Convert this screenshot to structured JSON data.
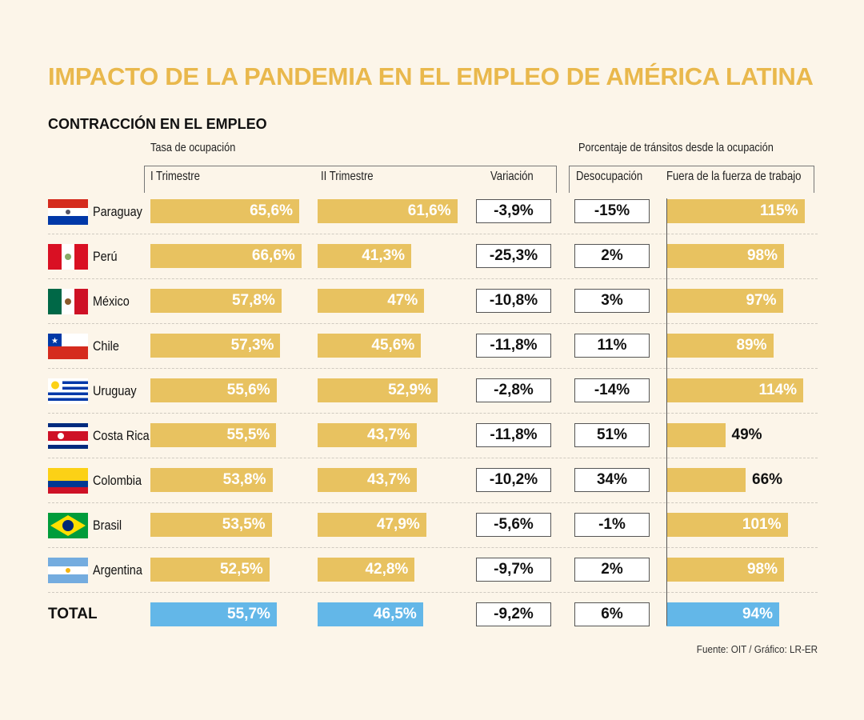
{
  "title": "IMPACTO DE LA PANDEMIA EN EL EMPLEO DE AMÉRICA LATINA",
  "subtitle": "CONTRACCIÓN EN EL EMPLEO",
  "source": "Fuente: OIT / Gráfico: LR-ER",
  "colors": {
    "title": "#e9b84c",
    "bar": "#e8c260",
    "total_bar": "#63b7e8",
    "background": "#fcf5e9"
  },
  "chart_data": {
    "type": "table",
    "groups": [
      "Tasa de ocupación",
      "Porcentaje de tránsitos desde la ocupación"
    ],
    "columns": [
      "I Trimestre",
      "II Trimestre",
      "Variación",
      "Desocupación",
      "Fuera de la fuerza de trabajo"
    ],
    "rows": [
      {
        "country": "Paraguay",
        "flag": "paraguay-flag",
        "t1": 65.6,
        "t1_label": "65,6%",
        "t2": 61.6,
        "t2_label": "61,6%",
        "var": "-3,9%",
        "desoc": "-15%",
        "fuera": 115,
        "fuera_label": "115%"
      },
      {
        "country": "Perú",
        "flag": "peru-flag",
        "t1": 66.6,
        "t1_label": "66,6%",
        "t2": 41.3,
        "t2_label": "41,3%",
        "var": "-25,3%",
        "desoc": "2%",
        "fuera": 98,
        "fuera_label": "98%"
      },
      {
        "country": "México",
        "flag": "mexico-flag",
        "t1": 57.8,
        "t1_label": "57,8%",
        "t2": 47,
        "t2_label": "47%",
        "var": "-10,8%",
        "desoc": "3%",
        "fuera": 97,
        "fuera_label": "97%"
      },
      {
        "country": "Chile",
        "flag": "chile-flag",
        "t1": 57.3,
        "t1_label": "57,3%",
        "t2": 45.6,
        "t2_label": "45,6%",
        "var": "-11,8%",
        "desoc": "11%",
        "fuera": 89,
        "fuera_label": "89%"
      },
      {
        "country": "Uruguay",
        "flag": "uruguay-flag",
        "t1": 55.6,
        "t1_label": "55,6%",
        "t2": 52.9,
        "t2_label": "52,9%",
        "var": "-2,8%",
        "desoc": "-14%",
        "fuera": 114,
        "fuera_label": "114%"
      },
      {
        "country": "Costa Rica",
        "flag": "costa-rica-flag",
        "t1": 55.5,
        "t1_label": "55,5%",
        "t2": 43.7,
        "t2_label": "43,7%",
        "var": "-11,8%",
        "desoc": "51%",
        "fuera": 49,
        "fuera_label": "49%"
      },
      {
        "country": "Colombia",
        "flag": "colombia-flag",
        "t1": 53.8,
        "t1_label": "53,8%",
        "t2": 43.7,
        "t2_label": "43,7%",
        "var": "-10,2%",
        "desoc": "34%",
        "fuera": 66,
        "fuera_label": "66%"
      },
      {
        "country": "Brasil",
        "flag": "brasil-flag",
        "t1": 53.5,
        "t1_label": "53,5%",
        "t2": 47.9,
        "t2_label": "47,9%",
        "var": "-5,6%",
        "desoc": "-1%",
        "fuera": 101,
        "fuera_label": "101%"
      },
      {
        "country": "Argentina",
        "flag": "argentina-flag",
        "t1": 52.5,
        "t1_label": "52,5%",
        "t2": 42.8,
        "t2_label": "42,8%",
        "var": "-9,7%",
        "desoc": "2%",
        "fuera": 98,
        "fuera_label": "98%"
      }
    ],
    "total": {
      "country": "TOTAL",
      "t1": 55.7,
      "t1_label": "55,7%",
      "t2": 46.5,
      "t2_label": "46,5%",
      "var": "-9,2%",
      "desoc": "6%",
      "fuera": 94,
      "fuera_label": "94%"
    }
  }
}
